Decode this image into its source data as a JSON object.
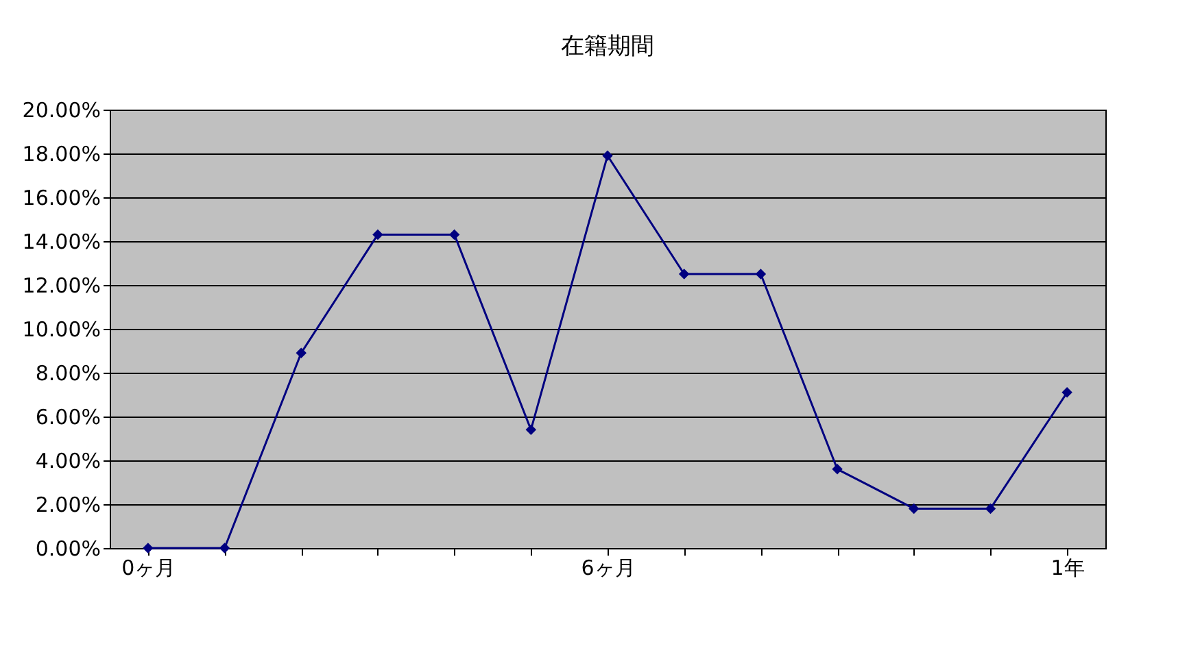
{
  "chart_data": {
    "type": "line",
    "title": "在籍期間",
    "categories": [
      "0ヶ月",
      null,
      null,
      null,
      null,
      null,
      "6ヶ月",
      null,
      null,
      null,
      null,
      null,
      "1年"
    ],
    "series": [
      {
        "color": "#000080",
        "values": [
          0,
          0,
          8.9,
          14.3,
          14.3,
          5.4,
          17.9,
          12.5,
          12.5,
          3.6,
          1.8,
          1.8,
          7.1
        ]
      }
    ],
    "ylim": [
      0,
      20
    ],
    "yticks": [
      {
        "value": 0,
        "label": "0.00%"
      },
      {
        "value": 2,
        "label": "2.00%"
      },
      {
        "value": 4,
        "label": "4.00%"
      },
      {
        "value": 6,
        "label": "6.00%"
      },
      {
        "value": 8,
        "label": "8.00%"
      },
      {
        "value": 10,
        "label": "10.00%"
      },
      {
        "value": 12,
        "label": "12.00%"
      },
      {
        "value": 14,
        "label": "14.00%"
      },
      {
        "value": 16,
        "label": "16.00%"
      },
      {
        "value": 18,
        "label": "18.00%"
      },
      {
        "value": 20,
        "label": "20.00%"
      }
    ],
    "grid": "y",
    "marker": "diamond",
    "line_style": "solid"
  }
}
